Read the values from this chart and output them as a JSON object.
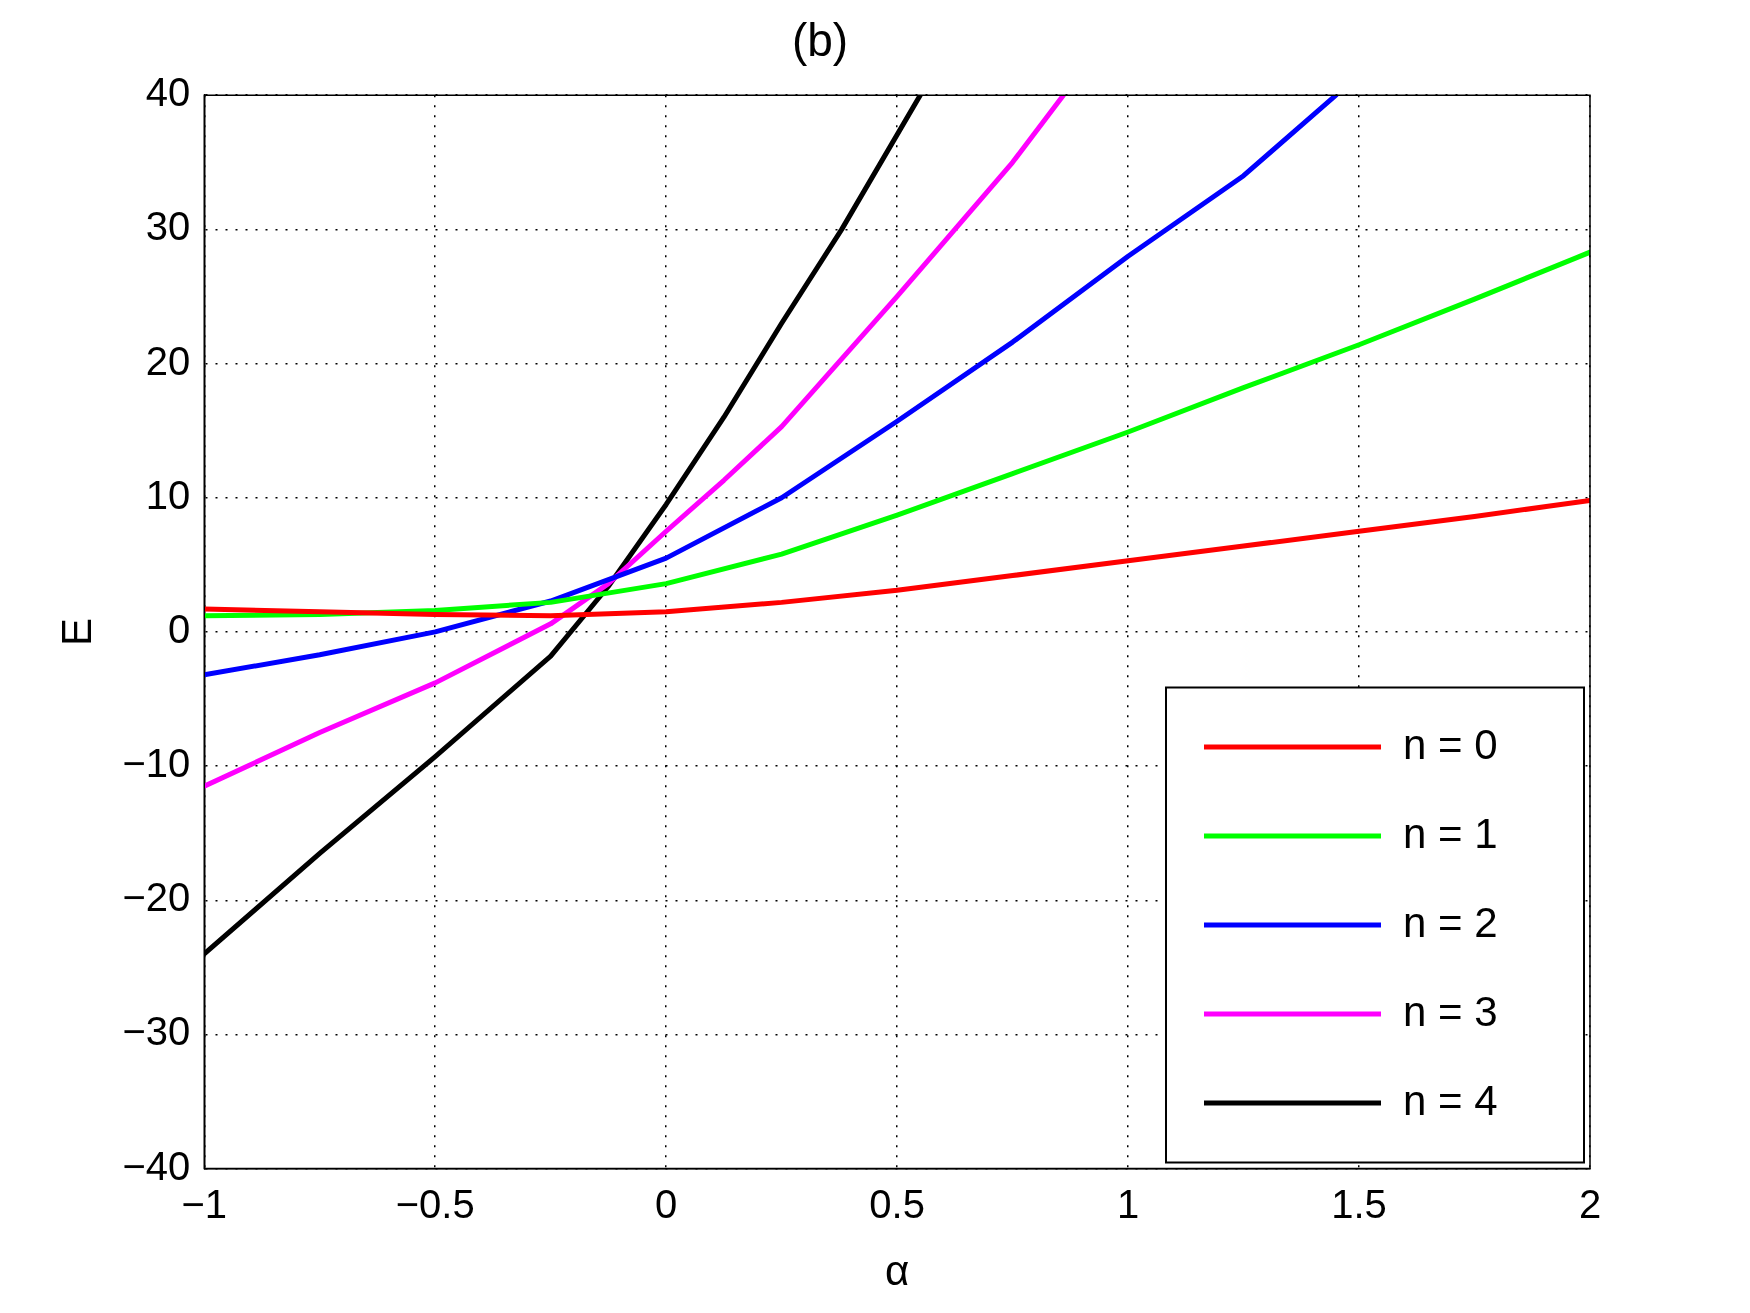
{
  "chart_data": {
    "type": "line",
    "title": "(b)",
    "xlabel": "α",
    "ylabel": "E",
    "xlim": [
      -1,
      2
    ],
    "xticks": [
      {
        "value": -1,
        "label": "−1"
      },
      {
        "value": -0.5,
        "label": "−0.5"
      },
      0,
      0.5,
      1,
      1.5,
      2
    ],
    "ylim": [
      -40,
      40
    ],
    "yticks": [
      {
        "value": -40,
        "label": "−40"
      },
      {
        "value": -30,
        "label": "−30"
      },
      {
        "value": -20,
        "label": "−20"
      },
      {
        "value": -10,
        "label": "−10"
      },
      0,
      10,
      20,
      30,
      40
    ],
    "grid": true,
    "legend": "bottom right",
    "line_style": "solid",
    "marker": "none",
    "series": [
      {
        "name": "n = 0",
        "color": "#ff0000",
        "x": [
          -1,
          -0.75,
          -0.5,
          -0.25,
          0,
          0.25,
          0.5,
          0.75,
          1,
          1.25,
          1.5,
          1.75,
          2
        ],
        "values": [
          1.7,
          1.5,
          1.3,
          1.2,
          1.5,
          2.2,
          3.1,
          4.2,
          5.3,
          6.4,
          7.5,
          8.6,
          9.8
        ]
      },
      {
        "name": "n = 1",
        "color": "#00ff00",
        "x": [
          -1,
          -0.75,
          -0.5,
          -0.25,
          0,
          0.25,
          0.5,
          0.75,
          1,
          1.25,
          1.5,
          1.75,
          2
        ],
        "values": [
          1.2,
          1.3,
          1.6,
          2.2,
          3.6,
          5.8,
          8.7,
          11.8,
          14.9,
          18.2,
          21.4,
          24.8,
          28.3
        ]
      },
      {
        "name": "n = 2",
        "color": "#0000ff",
        "x": [
          -1,
          -0.75,
          -0.5,
          -0.25,
          0,
          0.25,
          0.5,
          0.75,
          1,
          1.25,
          1.45
        ],
        "values": [
          -3.2,
          -1.7,
          0,
          2.3,
          5.5,
          10,
          15.7,
          21.6,
          28,
          34,
          40
        ]
      },
      {
        "name": "n = 3",
        "color": "#ff00ff",
        "x": [
          -1,
          -0.75,
          -0.5,
          -0.25,
          -0.125,
          0,
          0.125,
          0.25,
          0.5,
          0.75,
          0.86
        ],
        "values": [
          -11.5,
          -7.5,
          -3.8,
          0.6,
          3.6,
          7.5,
          11.3,
          15.3,
          25,
          35,
          40
        ]
      },
      {
        "name": "n = 4",
        "color": "#000000",
        "x": [
          -1,
          -0.75,
          -0.5,
          -0.25,
          -0.125,
          0,
          0.125,
          0.25,
          0.38,
          0.55
        ],
        "values": [
          -24,
          -16.5,
          -9.3,
          -1.8,
          3.4,
          9.5,
          16,
          23,
          30,
          40
        ]
      }
    ]
  }
}
